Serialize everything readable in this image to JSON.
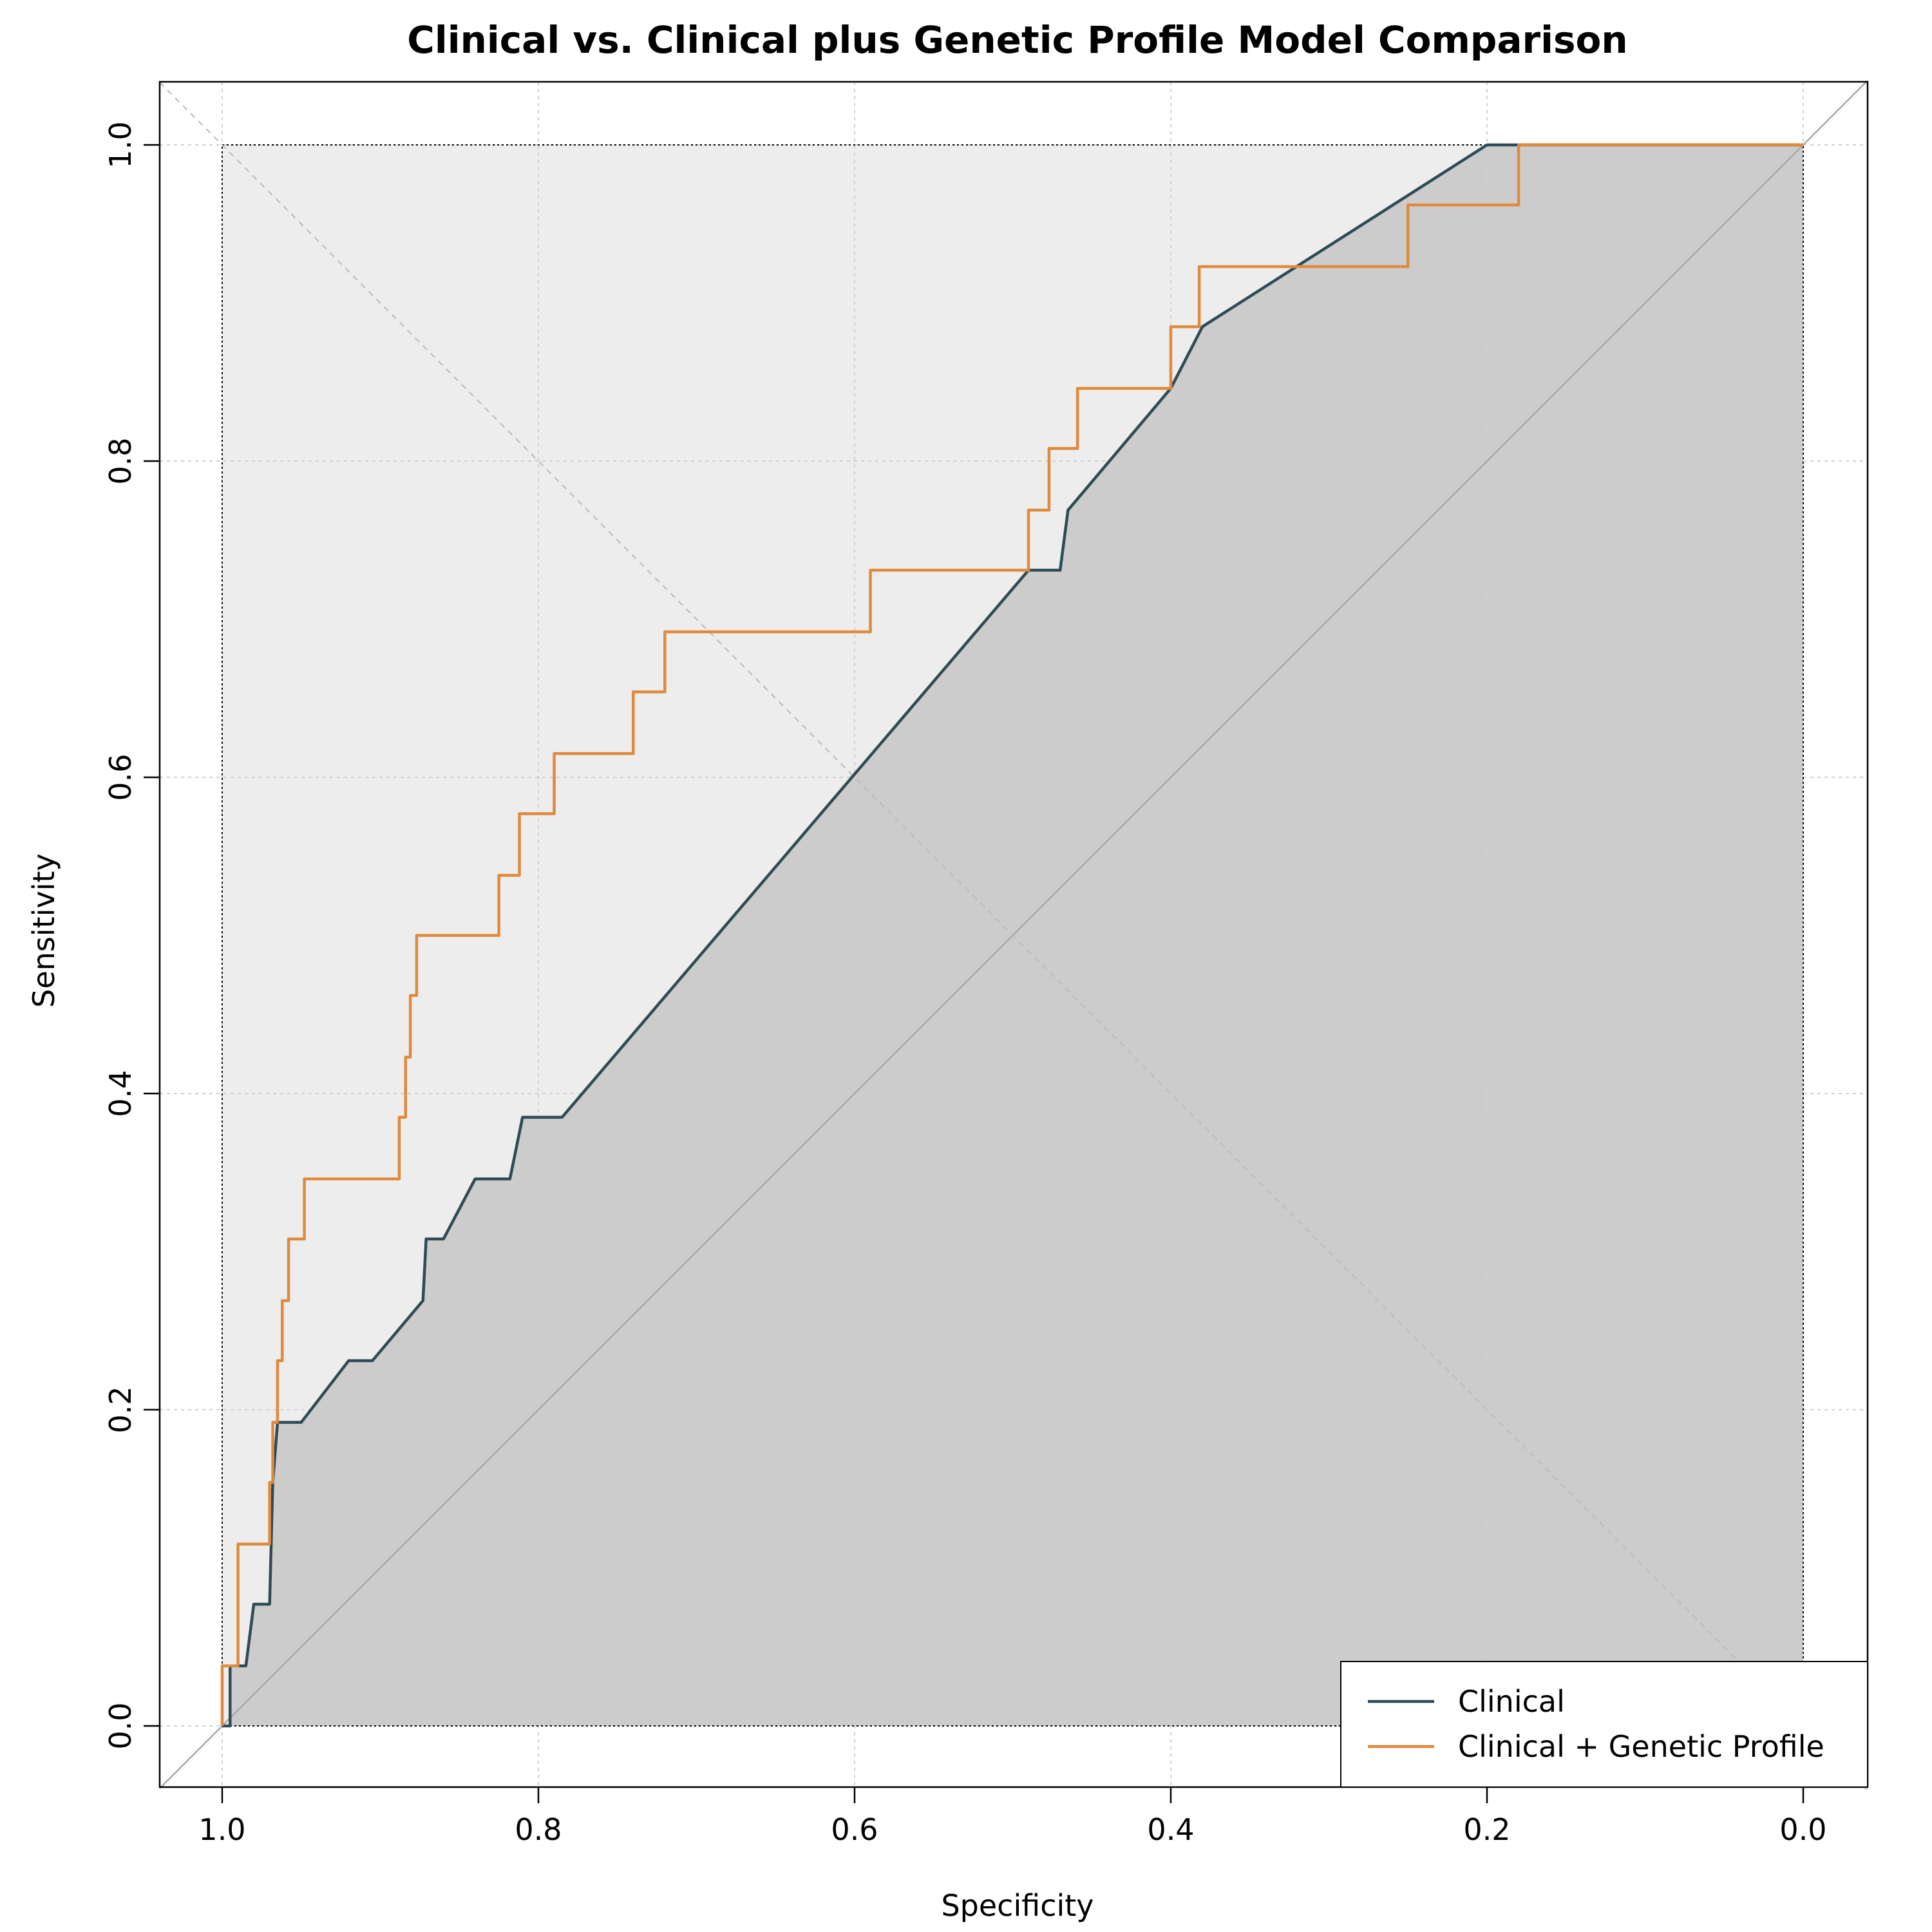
{
  "chart_data": {
    "type": "line",
    "title": "Clinical vs. Clinical plus Genetic Profile Model Comparison",
    "xlabel": "Specificity",
    "ylabel": "Sensitivity",
    "xlim": [
      1.0,
      0.0
    ],
    "ylim": [
      0.0,
      1.0
    ],
    "x_reversed": true,
    "grid": true,
    "legend_position": "bottom-right",
    "x_ticks": [
      "1.0",
      "0.8",
      "0.6",
      "0.4",
      "0.2",
      "0.0"
    ],
    "y_ticks": [
      "0.0",
      "0.2",
      "0.4",
      "0.6",
      "0.8",
      "1.0"
    ],
    "series": [
      {
        "name": "Clinical",
        "color": "#2f4b55",
        "x": [
          1.0,
          0.995,
          0.995,
          0.985,
          0.98,
          0.97,
          0.968,
          0.965,
          0.95,
          0.92,
          0.905,
          0.873,
          0.871,
          0.86,
          0.84,
          0.818,
          0.81,
          0.785,
          0.49,
          0.48,
          0.47,
          0.465,
          0.4,
          0.38,
          0.2,
          0.19,
          0.0
        ],
        "y": [
          0.0,
          0.0,
          0.038,
          0.038,
          0.077,
          0.077,
          0.154,
          0.192,
          0.192,
          0.231,
          0.231,
          0.269,
          0.308,
          0.308,
          0.346,
          0.346,
          0.385,
          0.385,
          0.731,
          0.731,
          0.731,
          0.769,
          0.846,
          0.885,
          1.0,
          1.0,
          1.0
        ]
      },
      {
        "name": "Clinical + Genetic Profile",
        "color": "#df8a3c",
        "x": [
          1.0,
          1.0,
          0.99,
          0.99,
          0.97,
          0.97,
          0.968,
          0.968,
          0.965,
          0.965,
          0.962,
          0.962,
          0.958,
          0.958,
          0.948,
          0.948,
          0.888,
          0.888,
          0.884,
          0.884,
          0.881,
          0.881,
          0.877,
          0.877,
          0.825,
          0.825,
          0.812,
          0.812,
          0.79,
          0.79,
          0.74,
          0.74,
          0.72,
          0.72,
          0.59,
          0.59,
          0.49,
          0.49,
          0.477,
          0.477,
          0.459,
          0.459,
          0.4,
          0.4,
          0.382,
          0.382,
          0.25,
          0.25,
          0.18,
          0.18,
          0.0
        ],
        "y": [
          0.0,
          0.038,
          0.038,
          0.115,
          0.115,
          0.154,
          0.154,
          0.192,
          0.192,
          0.231,
          0.231,
          0.269,
          0.269,
          0.308,
          0.308,
          0.346,
          0.346,
          0.385,
          0.385,
          0.423,
          0.423,
          0.462,
          0.462,
          0.5,
          0.5,
          0.538,
          0.538,
          0.577,
          0.577,
          0.615,
          0.615,
          0.654,
          0.654,
          0.692,
          0.692,
          0.731,
          0.731,
          0.769,
          0.769,
          0.808,
          0.808,
          0.846,
          0.846,
          0.885,
          0.885,
          0.923,
          0.923,
          0.962,
          0.962,
          1.0,
          1.0
        ]
      }
    ]
  },
  "colors": {
    "shade_outer": "#ededed",
    "shade_inner": "#cccccc",
    "diagonal": "#a8a8a8",
    "grid": "#d0d0d0"
  }
}
